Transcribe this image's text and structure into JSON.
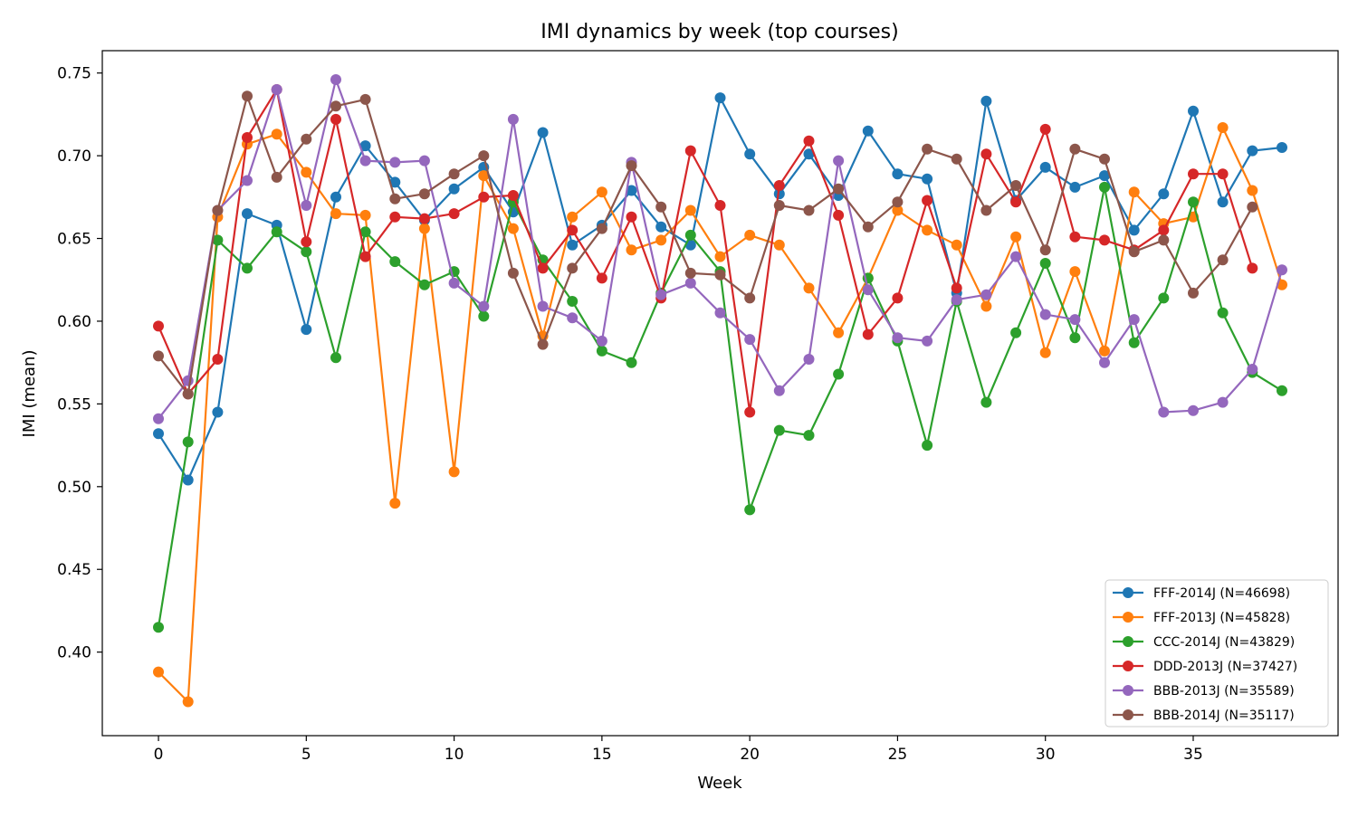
{
  "chart_data": {
    "type": "line",
    "title": "IMI dynamics by week (top courses)",
    "xlabel": "Week",
    "ylabel": "IMI (mean)",
    "xlim": [
      -1.9,
      39.9
    ],
    "ylim": [
      0.3495,
      0.7635
    ],
    "xticks": [
      0,
      5,
      10,
      15,
      20,
      25,
      30,
      35
    ],
    "xtick_labels": [
      "0",
      "5",
      "10",
      "15",
      "20",
      "25",
      "30",
      "35"
    ],
    "yticks": [
      0.4,
      0.45,
      0.5,
      0.55,
      0.6,
      0.65,
      0.7,
      0.75
    ],
    "ytick_labels": [
      "0.40",
      "0.45",
      "0.50",
      "0.55",
      "0.60",
      "0.65",
      "0.70",
      "0.75"
    ],
    "grid": false,
    "legend_position": "lower-right",
    "x": [
      0,
      1,
      2,
      3,
      4,
      5,
      6,
      7,
      8,
      9,
      10,
      11,
      12,
      13,
      14,
      15,
      16,
      17,
      18,
      19,
      20,
      21,
      22,
      23,
      24,
      25,
      26,
      27,
      28,
      29,
      30,
      31,
      32,
      33,
      34,
      35,
      36,
      37,
      38
    ],
    "series": [
      {
        "name": "FFF-2014J (N=46698)",
        "color": "#1f77b4",
        "values": [
          0.532,
          0.504,
          0.545,
          0.665,
          0.658,
          0.595,
          0.675,
          0.706,
          0.684,
          0.661,
          0.68,
          0.693,
          0.666,
          0.714,
          0.646,
          0.658,
          0.679,
          0.657,
          0.646,
          0.735,
          0.701,
          0.677,
          0.701,
          0.676,
          0.715,
          0.689,
          0.686,
          0.617,
          0.733,
          0.673,
          0.693,
          0.681,
          0.688,
          0.655,
          0.677,
          0.727,
          0.672,
          0.703,
          0.705
        ]
      },
      {
        "name": "FFF-2013J (N=45828)",
        "color": "#ff7f0e",
        "values": [
          0.388,
          0.37,
          0.663,
          0.707,
          0.713,
          0.69,
          0.665,
          0.664,
          0.49,
          0.656,
          0.509,
          0.688,
          0.656,
          0.591,
          0.663,
          0.678,
          0.643,
          0.649,
          0.667,
          0.639,
          0.652,
          0.646,
          0.62,
          0.593,
          0.626,
          0.667,
          0.655,
          0.646,
          0.609,
          0.651,
          0.581,
          0.63,
          0.582,
          0.678,
          0.659,
          0.663,
          0.717,
          0.679,
          0.622
        ]
      },
      {
        "name": "CCC-2014J (N=43829)",
        "color": "#2ca02c",
        "values": [
          0.415,
          0.527,
          0.649,
          0.632,
          0.654,
          0.642,
          0.578,
          0.654,
          0.636,
          0.622,
          0.63,
          0.603,
          0.672,
          0.637,
          0.612,
          0.582,
          0.575,
          0.617,
          0.652,
          0.63,
          0.486,
          0.534,
          0.531,
          0.568,
          0.626,
          0.588,
          0.525,
          0.612,
          0.551,
          0.593,
          0.635,
          0.59,
          0.681,
          0.587,
          0.614,
          0.672,
          0.605,
          0.569,
          0.558
        ]
      },
      {
        "name": "DDD-2013J (N=37427)",
        "color": "#d62728",
        "values": [
          0.597,
          0.556,
          0.577,
          0.711,
          0.74,
          0.648,
          0.722,
          0.639,
          0.663,
          0.662,
          0.665,
          0.675,
          0.676,
          0.632,
          0.655,
          0.626,
          0.663,
          0.614,
          0.703,
          0.67,
          0.545,
          0.682,
          0.709,
          0.664,
          0.592,
          0.614,
          0.673,
          0.62,
          0.701,
          0.672,
          0.716,
          0.651,
          0.649,
          0.643,
          0.655,
          0.689,
          0.689,
          0.632,
          null
        ]
      },
      {
        "name": "BBB-2013J (N=35589)",
        "color": "#9467bd",
        "values": [
          0.541,
          0.564,
          0.667,
          0.685,
          0.74,
          0.67,
          0.746,
          0.697,
          0.696,
          0.697,
          0.623,
          0.609,
          0.722,
          0.609,
          0.602,
          0.588,
          0.696,
          0.616,
          0.623,
          0.605,
          0.589,
          0.558,
          0.577,
          0.697,
          0.619,
          0.59,
          0.588,
          0.613,
          0.616,
          0.639,
          0.604,
          0.601,
          0.575,
          0.601,
          0.545,
          0.546,
          0.551,
          0.571,
          0.631
        ]
      },
      {
        "name": "BBB-2014J (N=35117)",
        "color": "#8c564b",
        "values": [
          0.579,
          0.556,
          0.667,
          0.736,
          0.687,
          0.71,
          0.73,
          0.734,
          0.674,
          0.677,
          0.689,
          0.7,
          0.629,
          0.586,
          0.632,
          0.656,
          0.694,
          0.669,
          0.629,
          0.628,
          0.614,
          0.67,
          0.667,
          0.68,
          0.657,
          0.672,
          0.704,
          0.698,
          0.667,
          0.682,
          0.643,
          0.704,
          0.698,
          0.642,
          0.649,
          0.617,
          0.637,
          0.669,
          null
        ]
      }
    ]
  }
}
